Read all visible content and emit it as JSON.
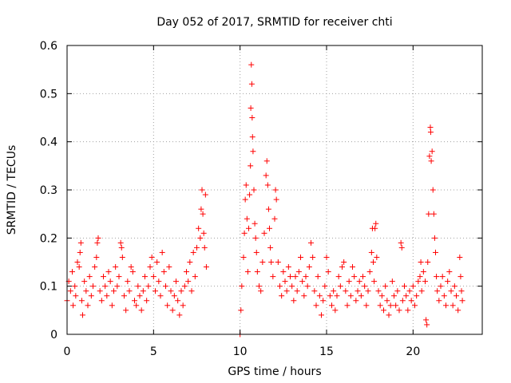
{
  "chart_data": {
    "type": "scatter",
    "title": "Day 052 of 2017, SRMTID for receiver chti",
    "xlabel": "GPS time / hours",
    "ylabel": "SRMTID / TECUs",
    "xlim": [
      0,
      24
    ],
    "ylim": [
      0,
      0.6
    ],
    "xticks": [
      0,
      5,
      10,
      15,
      20
    ],
    "xtick_labels": [
      "0",
      "5",
      "10",
      "15",
      "20"
    ],
    "yticks": [
      0,
      0.1,
      0.2,
      0.3,
      0.4,
      0.5,
      0.6
    ],
    "ytick_labels": [
      "0",
      "0.1",
      "0.2",
      "0.3",
      "0.4",
      "0.5",
      "0.6"
    ],
    "grid": true,
    "marker": "+",
    "color": "#ff0000",
    "series": [
      {
        "name": "SRMTID",
        "points": [
          [
            0.0,
            0.07
          ],
          [
            0.1,
            0.11
          ],
          [
            0.2,
            0.09
          ],
          [
            0.3,
            0.13
          ],
          [
            0.35,
            0.06
          ],
          [
            0.45,
            0.1
          ],
          [
            0.5,
            0.08
          ],
          [
            0.6,
            0.15
          ],
          [
            0.7,
            0.14
          ],
          [
            0.75,
            0.17
          ],
          [
            0.8,
            0.19
          ],
          [
            0.85,
            0.07
          ],
          [
            0.9,
            0.04
          ],
          [
            1.0,
            0.11
          ],
          [
            1.1,
            0.09
          ],
          [
            1.2,
            0.06
          ],
          [
            1.3,
            0.12
          ],
          [
            1.4,
            0.08
          ],
          [
            1.5,
            0.1
          ],
          [
            1.6,
            0.14
          ],
          [
            1.7,
            0.16
          ],
          [
            1.75,
            0.19
          ],
          [
            1.8,
            0.2
          ],
          [
            1.9,
            0.09
          ],
          [
            2.0,
            0.07
          ],
          [
            2.1,
            0.12
          ],
          [
            2.2,
            0.1
          ],
          [
            2.3,
            0.08
          ],
          [
            2.4,
            0.13
          ],
          [
            2.5,
            0.11
          ],
          [
            2.6,
            0.06
          ],
          [
            2.7,
            0.09
          ],
          [
            2.8,
            0.14
          ],
          [
            2.9,
            0.1
          ],
          [
            3.0,
            0.12
          ],
          [
            3.1,
            0.19
          ],
          [
            3.15,
            0.18
          ],
          [
            3.2,
            0.16
          ],
          [
            3.3,
            0.08
          ],
          [
            3.4,
            0.05
          ],
          [
            3.5,
            0.11
          ],
          [
            3.6,
            0.09
          ],
          [
            3.7,
            0.14
          ],
          [
            3.8,
            0.13
          ],
          [
            3.9,
            0.07
          ],
          [
            4.0,
            0.06
          ],
          [
            4.1,
            0.1
          ],
          [
            4.2,
            0.08
          ],
          [
            4.3,
            0.05
          ],
          [
            4.4,
            0.09
          ],
          [
            4.5,
            0.12
          ],
          [
            4.6,
            0.07
          ],
          [
            4.7,
            0.1
          ],
          [
            4.8,
            0.14
          ],
          [
            4.9,
            0.16
          ],
          [
            5.0,
            0.12
          ],
          [
            5.1,
            0.09
          ],
          [
            5.2,
            0.15
          ],
          [
            5.3,
            0.11
          ],
          [
            5.4,
            0.08
          ],
          [
            5.5,
            0.17
          ],
          [
            5.6,
            0.13
          ],
          [
            5.7,
            0.1
          ],
          [
            5.8,
            0.06
          ],
          [
            5.9,
            0.14
          ],
          [
            6.0,
            0.09
          ],
          [
            6.1,
            0.05
          ],
          [
            6.2,
            0.08
          ],
          [
            6.3,
            0.11
          ],
          [
            6.4,
            0.07
          ],
          [
            6.5,
            0.04
          ],
          [
            6.6,
            0.09
          ],
          [
            6.7,
            0.06
          ],
          [
            6.8,
            0.1
          ],
          [
            6.9,
            0.13
          ],
          [
            7.0,
            0.11
          ],
          [
            7.1,
            0.15
          ],
          [
            7.2,
            0.09
          ],
          [
            7.3,
            0.17
          ],
          [
            7.4,
            0.12
          ],
          [
            7.5,
            0.18
          ],
          [
            7.6,
            0.22
          ],
          [
            7.7,
            0.2
          ],
          [
            7.75,
            0.26
          ],
          [
            7.8,
            0.3
          ],
          [
            7.85,
            0.25
          ],
          [
            7.9,
            0.21
          ],
          [
            7.95,
            0.18
          ],
          [
            8.0,
            0.29
          ],
          [
            8.05,
            0.14
          ],
          [
            10.0,
            0.0
          ],
          [
            10.05,
            0.05
          ],
          [
            10.1,
            0.1
          ],
          [
            10.2,
            0.16
          ],
          [
            10.25,
            0.21
          ],
          [
            10.3,
            0.28
          ],
          [
            10.35,
            0.31
          ],
          [
            10.4,
            0.24
          ],
          [
            10.45,
            0.13
          ],
          [
            10.5,
            0.22
          ],
          [
            10.55,
            0.29
          ],
          [
            10.6,
            0.35
          ],
          [
            10.62,
            0.47
          ],
          [
            10.65,
            0.56
          ],
          [
            10.68,
            0.52
          ],
          [
            10.7,
            0.45
          ],
          [
            10.72,
            0.41
          ],
          [
            10.75,
            0.38
          ],
          [
            10.8,
            0.3
          ],
          [
            10.85,
            0.23
          ],
          [
            10.9,
            0.2
          ],
          [
            10.95,
            0.17
          ],
          [
            11.0,
            0.13
          ],
          [
            11.1,
            0.1
          ],
          [
            11.2,
            0.09
          ],
          [
            11.3,
            0.15
          ],
          [
            11.4,
            0.21
          ],
          [
            11.5,
            0.33
          ],
          [
            11.55,
            0.36
          ],
          [
            11.6,
            0.31
          ],
          [
            11.65,
            0.26
          ],
          [
            11.7,
            0.22
          ],
          [
            11.75,
            0.18
          ],
          [
            11.8,
            0.15
          ],
          [
            11.9,
            0.12
          ],
          [
            12.0,
            0.24
          ],
          [
            12.05,
            0.3
          ],
          [
            12.1,
            0.28
          ],
          [
            12.2,
            0.15
          ],
          [
            12.3,
            0.1
          ],
          [
            12.4,
            0.08
          ],
          [
            12.5,
            0.13
          ],
          [
            12.6,
            0.11
          ],
          [
            12.7,
            0.09
          ],
          [
            12.8,
            0.14
          ],
          [
            12.9,
            0.12
          ],
          [
            13.0,
            0.1
          ],
          [
            13.1,
            0.07
          ],
          [
            13.2,
            0.12
          ],
          [
            13.3,
            0.09
          ],
          [
            13.4,
            0.13
          ],
          [
            13.5,
            0.16
          ],
          [
            13.6,
            0.11
          ],
          [
            13.7,
            0.08
          ],
          [
            13.8,
            0.12
          ],
          [
            13.9,
            0.1
          ],
          [
            14.0,
            0.14
          ],
          [
            14.1,
            0.19
          ],
          [
            14.2,
            0.16
          ],
          [
            14.3,
            0.09
          ],
          [
            14.4,
            0.06
          ],
          [
            14.5,
            0.12
          ],
          [
            14.6,
            0.08
          ],
          [
            14.7,
            0.04
          ],
          [
            14.8,
            0.07
          ],
          [
            14.9,
            0.1
          ],
          [
            15.0,
            0.16
          ],
          [
            15.1,
            0.13
          ],
          [
            15.2,
            0.08
          ],
          [
            15.3,
            0.06
          ],
          [
            15.4,
            0.09
          ],
          [
            15.5,
            0.05
          ],
          [
            15.6,
            0.08
          ],
          [
            15.7,
            0.12
          ],
          [
            15.8,
            0.1
          ],
          [
            15.9,
            0.14
          ],
          [
            16.0,
            0.15
          ],
          [
            16.1,
            0.09
          ],
          [
            16.2,
            0.06
          ],
          [
            16.3,
            0.11
          ],
          [
            16.4,
            0.08
          ],
          [
            16.5,
            0.14
          ],
          [
            16.6,
            0.12
          ],
          [
            16.7,
            0.07
          ],
          [
            16.8,
            0.09
          ],
          [
            16.9,
            0.11
          ],
          [
            17.0,
            0.08
          ],
          [
            17.1,
            0.12
          ],
          [
            17.2,
            0.1
          ],
          [
            17.3,
            0.06
          ],
          [
            17.4,
            0.09
          ],
          [
            17.5,
            0.13
          ],
          [
            17.6,
            0.17
          ],
          [
            17.65,
            0.22
          ],
          [
            17.7,
            0.15
          ],
          [
            17.75,
            0.11
          ],
          [
            17.8,
            0.22
          ],
          [
            17.85,
            0.23
          ],
          [
            17.9,
            0.16
          ],
          [
            18.0,
            0.09
          ],
          [
            18.1,
            0.06
          ],
          [
            18.2,
            0.08
          ],
          [
            18.3,
            0.05
          ],
          [
            18.4,
            0.1
          ],
          [
            18.5,
            0.07
          ],
          [
            18.6,
            0.04
          ],
          [
            18.7,
            0.06
          ],
          [
            18.8,
            0.11
          ],
          [
            18.9,
            0.08
          ],
          [
            19.0,
            0.06
          ],
          [
            19.1,
            0.09
          ],
          [
            19.2,
            0.05
          ],
          [
            19.3,
            0.19
          ],
          [
            19.35,
            0.18
          ],
          [
            19.4,
            0.07
          ],
          [
            19.5,
            0.1
          ],
          [
            19.6,
            0.08
          ],
          [
            19.7,
            0.05
          ],
          [
            19.8,
            0.09
          ],
          [
            19.9,
            0.07
          ],
          [
            20.0,
            0.1
          ],
          [
            20.1,
            0.06
          ],
          [
            20.2,
            0.08
          ],
          [
            20.3,
            0.11
          ],
          [
            20.4,
            0.12
          ],
          [
            20.45,
            0.15
          ],
          [
            20.5,
            0.09
          ],
          [
            20.6,
            0.13
          ],
          [
            20.7,
            0.11
          ],
          [
            20.75,
            0.03
          ],
          [
            20.8,
            0.02
          ],
          [
            20.85,
            0.15
          ],
          [
            20.9,
            0.25
          ],
          [
            20.95,
            0.37
          ],
          [
            21.0,
            0.43
          ],
          [
            21.02,
            0.42
          ],
          [
            21.05,
            0.36
          ],
          [
            21.1,
            0.38
          ],
          [
            21.15,
            0.3
          ],
          [
            21.2,
            0.25
          ],
          [
            21.25,
            0.2
          ],
          [
            21.3,
            0.17
          ],
          [
            21.35,
            0.12
          ],
          [
            21.4,
            0.09
          ],
          [
            21.5,
            0.07
          ],
          [
            21.6,
            0.1
          ],
          [
            21.7,
            0.12
          ],
          [
            21.8,
            0.08
          ],
          [
            21.9,
            0.06
          ],
          [
            22.0,
            0.11
          ],
          [
            22.1,
            0.13
          ],
          [
            22.2,
            0.09
          ],
          [
            22.3,
            0.06
          ],
          [
            22.4,
            0.1
          ],
          [
            22.5,
            0.08
          ],
          [
            22.6,
            0.05
          ],
          [
            22.7,
            0.16
          ],
          [
            22.75,
            0.12
          ],
          [
            22.8,
            0.09
          ],
          [
            22.85,
            0.07
          ]
        ]
      }
    ]
  }
}
